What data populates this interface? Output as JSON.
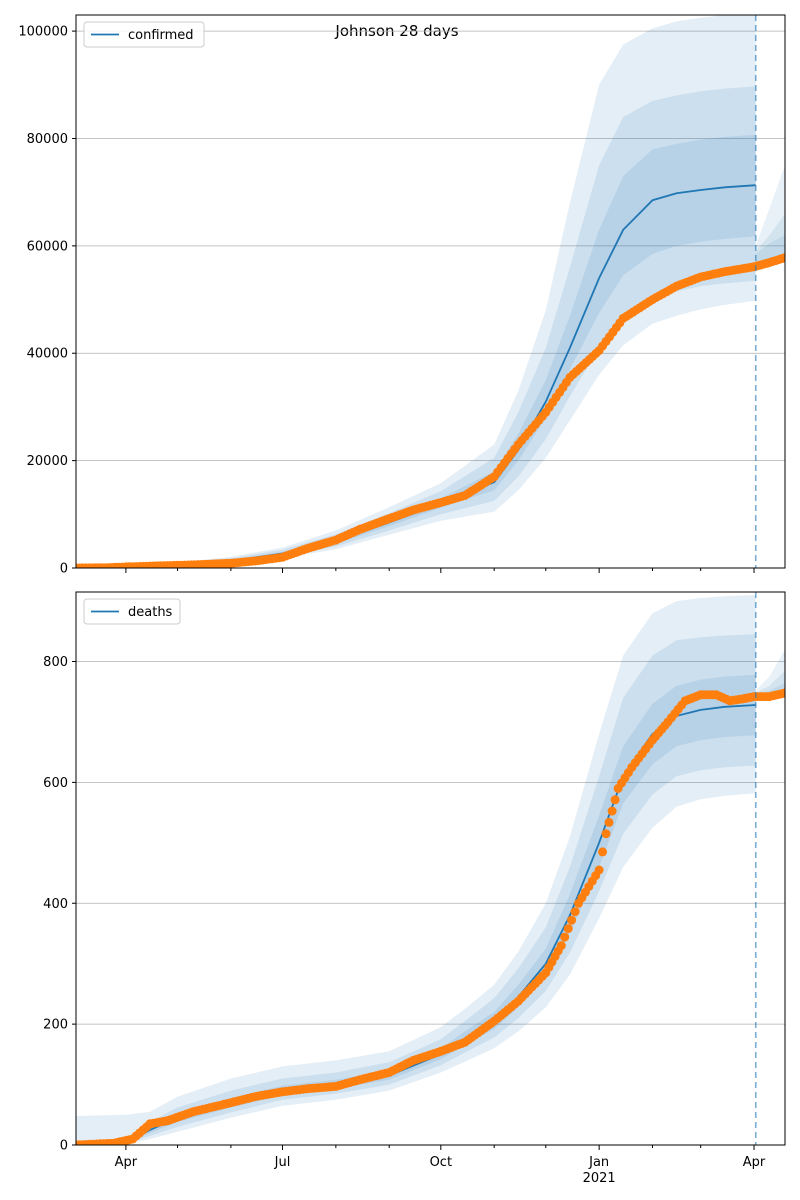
{
  "figure": {
    "title": "Johnson 28 days",
    "line_color": "#1f77b4",
    "point_color": "#ff7f0e",
    "band_color": "#1f77b4",
    "x_ticks": [
      {
        "date": "2020-04-01",
        "label": "Apr",
        "sub": ""
      },
      {
        "date": "2020-07-01",
        "label": "Jul",
        "sub": ""
      },
      {
        "date": "2020-10-01",
        "label": "Oct",
        "sub": ""
      },
      {
        "date": "2021-01-01",
        "label": "Jan",
        "sub": "2021"
      },
      {
        "date": "2021-04-01",
        "label": "Apr",
        "sub": ""
      }
    ],
    "x_range": [
      "2020-03-03",
      "2021-04-19"
    ],
    "forecast_start": "2021-04-02"
  },
  "chart_data": [
    {
      "type": "line",
      "legend": "confirmed",
      "legend_placement": "top-left",
      "grid": "horizontal",
      "ylim": [
        0,
        103000
      ],
      "yticks": [
        0,
        20000,
        40000,
        60000,
        80000,
        100000
      ],
      "model": {
        "x": [
          "2020-03-03",
          "2020-04-01",
          "2020-05-01",
          "2020-06-01",
          "2020-07-01",
          "2020-08-01",
          "2020-09-01",
          "2020-10-01",
          "2020-11-01",
          "2020-11-15",
          "2020-12-01",
          "2020-12-15",
          "2021-01-01",
          "2021-01-15",
          "2021-02-01",
          "2021-02-15",
          "2021-03-01",
          "2021-03-15",
          "2021-04-02"
        ],
        "median": [
          0,
          150,
          600,
          1300,
          2700,
          5000,
          8500,
          12000,
          16000,
          22000,
          31000,
          41000,
          54000,
          63000,
          68500,
          69800,
          70400,
          70900,
          71300
        ],
        "band_50_low": [
          0,
          120,
          500,
          1100,
          2400,
          4500,
          7800,
          11200,
          14500,
          20000,
          28000,
          37000,
          47500,
          54500,
          58500,
          60000,
          60800,
          61300,
          61800
        ],
        "band_50_high": [
          0,
          180,
          700,
          1500,
          3000,
          5600,
          9300,
          13000,
          18000,
          25000,
          35000,
          47000,
          63000,
          73000,
          78000,
          79000,
          79800,
          80300,
          80700
        ],
        "band_80_low": [
          0,
          90,
          400,
          900,
          2100,
          4000,
          7000,
          10000,
          12500,
          17000,
          24000,
          32000,
          41000,
          46500,
          50000,
          51500,
          52500,
          53000,
          53500
        ],
        "band_80_high": [
          0,
          230,
          850,
          1800,
          3400,
          6300,
          10200,
          14300,
          20500,
          29000,
          41000,
          56000,
          75000,
          84000,
          87000,
          88000,
          88800,
          89300,
          89700
        ],
        "band_95_low": [
          0,
          60,
          300,
          700,
          1800,
          3500,
          6200,
          8800,
          10500,
          14500,
          20500,
          27500,
          36000,
          41500,
          45500,
          47000,
          48200,
          49000,
          49800
        ],
        "band_95_high": [
          0,
          300,
          1000,
          2100,
          3800,
          7000,
          11300,
          15800,
          23000,
          33000,
          48000,
          68000,
          90000,
          97500,
          100500,
          101800,
          102500,
          103000,
          103000
        ]
      },
      "post_forecast_bands": {
        "x": [
          "2021-04-02",
          "2021-04-10",
          "2021-04-19"
        ],
        "band_50_high": [
          58500,
          60500,
          62000
        ],
        "band_80_high": [
          59000,
          62000,
          66000
        ],
        "band_95_high": [
          60000,
          67000,
          75000
        ],
        "band_95_low": [
          56000,
          56800,
          57500
        ]
      },
      "observed": {
        "x": [
          "2020-03-03",
          "2020-03-20",
          "2020-04-01",
          "2020-04-15",
          "2020-05-01",
          "2020-05-15",
          "2020-06-01",
          "2020-06-15",
          "2020-07-01",
          "2020-07-15",
          "2020-08-01",
          "2020-08-15",
          "2020-09-01",
          "2020-09-15",
          "2020-10-01",
          "2020-10-15",
          "2020-11-01",
          "2020-11-15",
          "2020-12-01",
          "2020-12-15",
          "2021-01-01",
          "2021-01-15",
          "2021-02-01",
          "2021-02-15",
          "2021-03-01",
          "2021-03-15",
          "2021-04-01",
          "2021-04-10",
          "2021-04-19"
        ],
        "y": [
          0,
          50,
          200,
          350,
          500,
          650,
          900,
          1300,
          2000,
          3600,
          5200,
          7200,
          9200,
          10800,
          12200,
          13500,
          17000,
          23000,
          29000,
          35500,
          40500,
          46500,
          50000,
          52500,
          54200,
          55200,
          56100,
          56900,
          57800
        ]
      }
    },
    {
      "type": "line",
      "legend": "deaths",
      "legend_placement": "top-left",
      "grid": "horizontal",
      "ylim": [
        0,
        915
      ],
      "yticks": [
        0,
        200,
        400,
        600,
        800
      ],
      "model": {
        "x": [
          "2020-03-03",
          "2020-04-01",
          "2020-04-15",
          "2020-05-01",
          "2020-06-01",
          "2020-07-01",
          "2020-08-01",
          "2020-09-01",
          "2020-10-01",
          "2020-10-15",
          "2020-11-01",
          "2020-11-15",
          "2020-12-01",
          "2020-12-15",
          "2021-01-01",
          "2021-01-15",
          "2021-02-01",
          "2021-02-15",
          "2021-03-01",
          "2021-03-15",
          "2021-04-02"
        ],
        "median": [
          0,
          5,
          25,
          45,
          70,
          90,
          100,
          115,
          150,
          175,
          205,
          245,
          300,
          380,
          500,
          610,
          680,
          710,
          720,
          725,
          728
        ],
        "band_50_low": [
          0,
          3,
          20,
          38,
          62,
          83,
          93,
          108,
          142,
          165,
          192,
          228,
          278,
          350,
          460,
          565,
          630,
          660,
          670,
          675,
          678
        ],
        "band_50_high": [
          0,
          8,
          30,
          52,
          78,
          98,
          108,
          123,
          160,
          188,
          220,
          265,
          325,
          415,
          545,
          660,
          730,
          760,
          770,
          775,
          778
        ],
        "band_80_low": [
          0,
          2,
          15,
          30,
          54,
          75,
          85,
          100,
          132,
          153,
          178,
          210,
          255,
          318,
          420,
          515,
          580,
          610,
          620,
          625,
          628
        ],
        "band_80_high": [
          0,
          12,
          38,
          62,
          90,
          110,
          120,
          137,
          175,
          205,
          243,
          292,
          360,
          460,
          610,
          740,
          810,
          835,
          840,
          843,
          845
        ],
        "band_95_low": [
          0,
          1,
          10,
          22,
          45,
          65,
          75,
          90,
          120,
          138,
          160,
          188,
          228,
          282,
          375,
          460,
          525,
          560,
          572,
          578,
          582
        ],
        "band_95_high": [
          48,
          50,
          55,
          80,
          110,
          130,
          140,
          155,
          195,
          225,
          265,
          320,
          400,
          510,
          680,
          810,
          880,
          900,
          905,
          908,
          910
        ]
      },
      "post_forecast_bands": {
        "x": [
          "2021-04-02",
          "2021-04-10",
          "2021-04-19"
        ],
        "band_50_high": [
          745,
          752,
          765
        ],
        "band_80_high": [
          748,
          760,
          785
        ],
        "band_95_high": [
          752,
          775,
          820
        ],
        "band_95_low": [
          738,
          741,
          744
        ]
      },
      "observed": {
        "x": [
          "2020-03-03",
          "2020-03-25",
          "2020-04-05",
          "2020-04-15",
          "2020-04-25",
          "2020-05-10",
          "2020-06-01",
          "2020-06-15",
          "2020-07-01",
          "2020-07-15",
          "2020-08-01",
          "2020-08-15",
          "2020-09-01",
          "2020-09-15",
          "2020-10-01",
          "2020-10-15",
          "2020-11-01",
          "2020-11-15",
          "2020-12-01",
          "2020-12-10",
          "2020-12-20",
          "2021-01-01",
          "2021-01-05",
          "2021-01-12",
          "2021-01-20",
          "2021-02-01",
          "2021-02-10",
          "2021-02-20",
          "2021-03-01",
          "2021-03-10",
          "2021-03-18",
          "2021-03-25",
          "2021-04-01",
          "2021-04-10",
          "2021-04-19"
        ],
        "y": [
          0,
          3,
          10,
          35,
          40,
          55,
          70,
          80,
          88,
          93,
          97,
          108,
          120,
          140,
          155,
          170,
          205,
          238,
          285,
          330,
          400,
          455,
          515,
          590,
          625,
          670,
          700,
          735,
          745,
          745,
          735,
          738,
          742,
          742,
          748
        ]
      }
    }
  ]
}
